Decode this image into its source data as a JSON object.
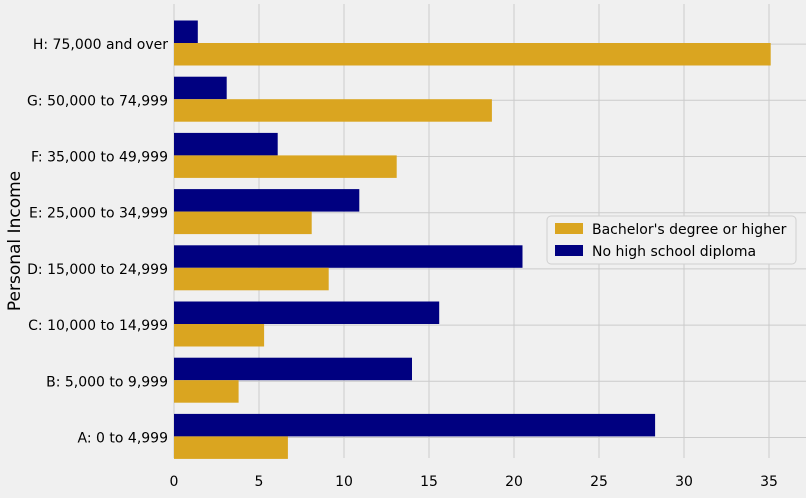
{
  "chart_data": {
    "type": "bar",
    "orientation": "horizontal",
    "title": "",
    "xlabel": "",
    "ylabel": "Personal Income",
    "xlim": [
      0,
      37.5
    ],
    "xticks": [
      0,
      5,
      10,
      15,
      20,
      25,
      30,
      35
    ],
    "grid": true,
    "legend_position": "right",
    "categories": [
      "A: 0 to 4,999",
      "B: 5,000 to 9,999",
      "C: 10,000 to 14,999",
      "D: 15,000 to 24,999",
      "E: 25,000 to 34,999",
      "F: 35,000 to 49,999",
      "G: 50,000 to 74,999",
      "H: 75,000 and over"
    ],
    "series": [
      {
        "name": "Bachelor's degree or higher",
        "color": "#daa520",
        "values": [
          6.7,
          3.8,
          5.3,
          9.1,
          8.1,
          13.1,
          18.7,
          35.1
        ]
      },
      {
        "name": "No high school diploma",
        "color": "#000080",
        "values": [
          28.3,
          14.0,
          15.6,
          20.5,
          10.9,
          6.1,
          3.1,
          1.4
        ]
      }
    ]
  }
}
